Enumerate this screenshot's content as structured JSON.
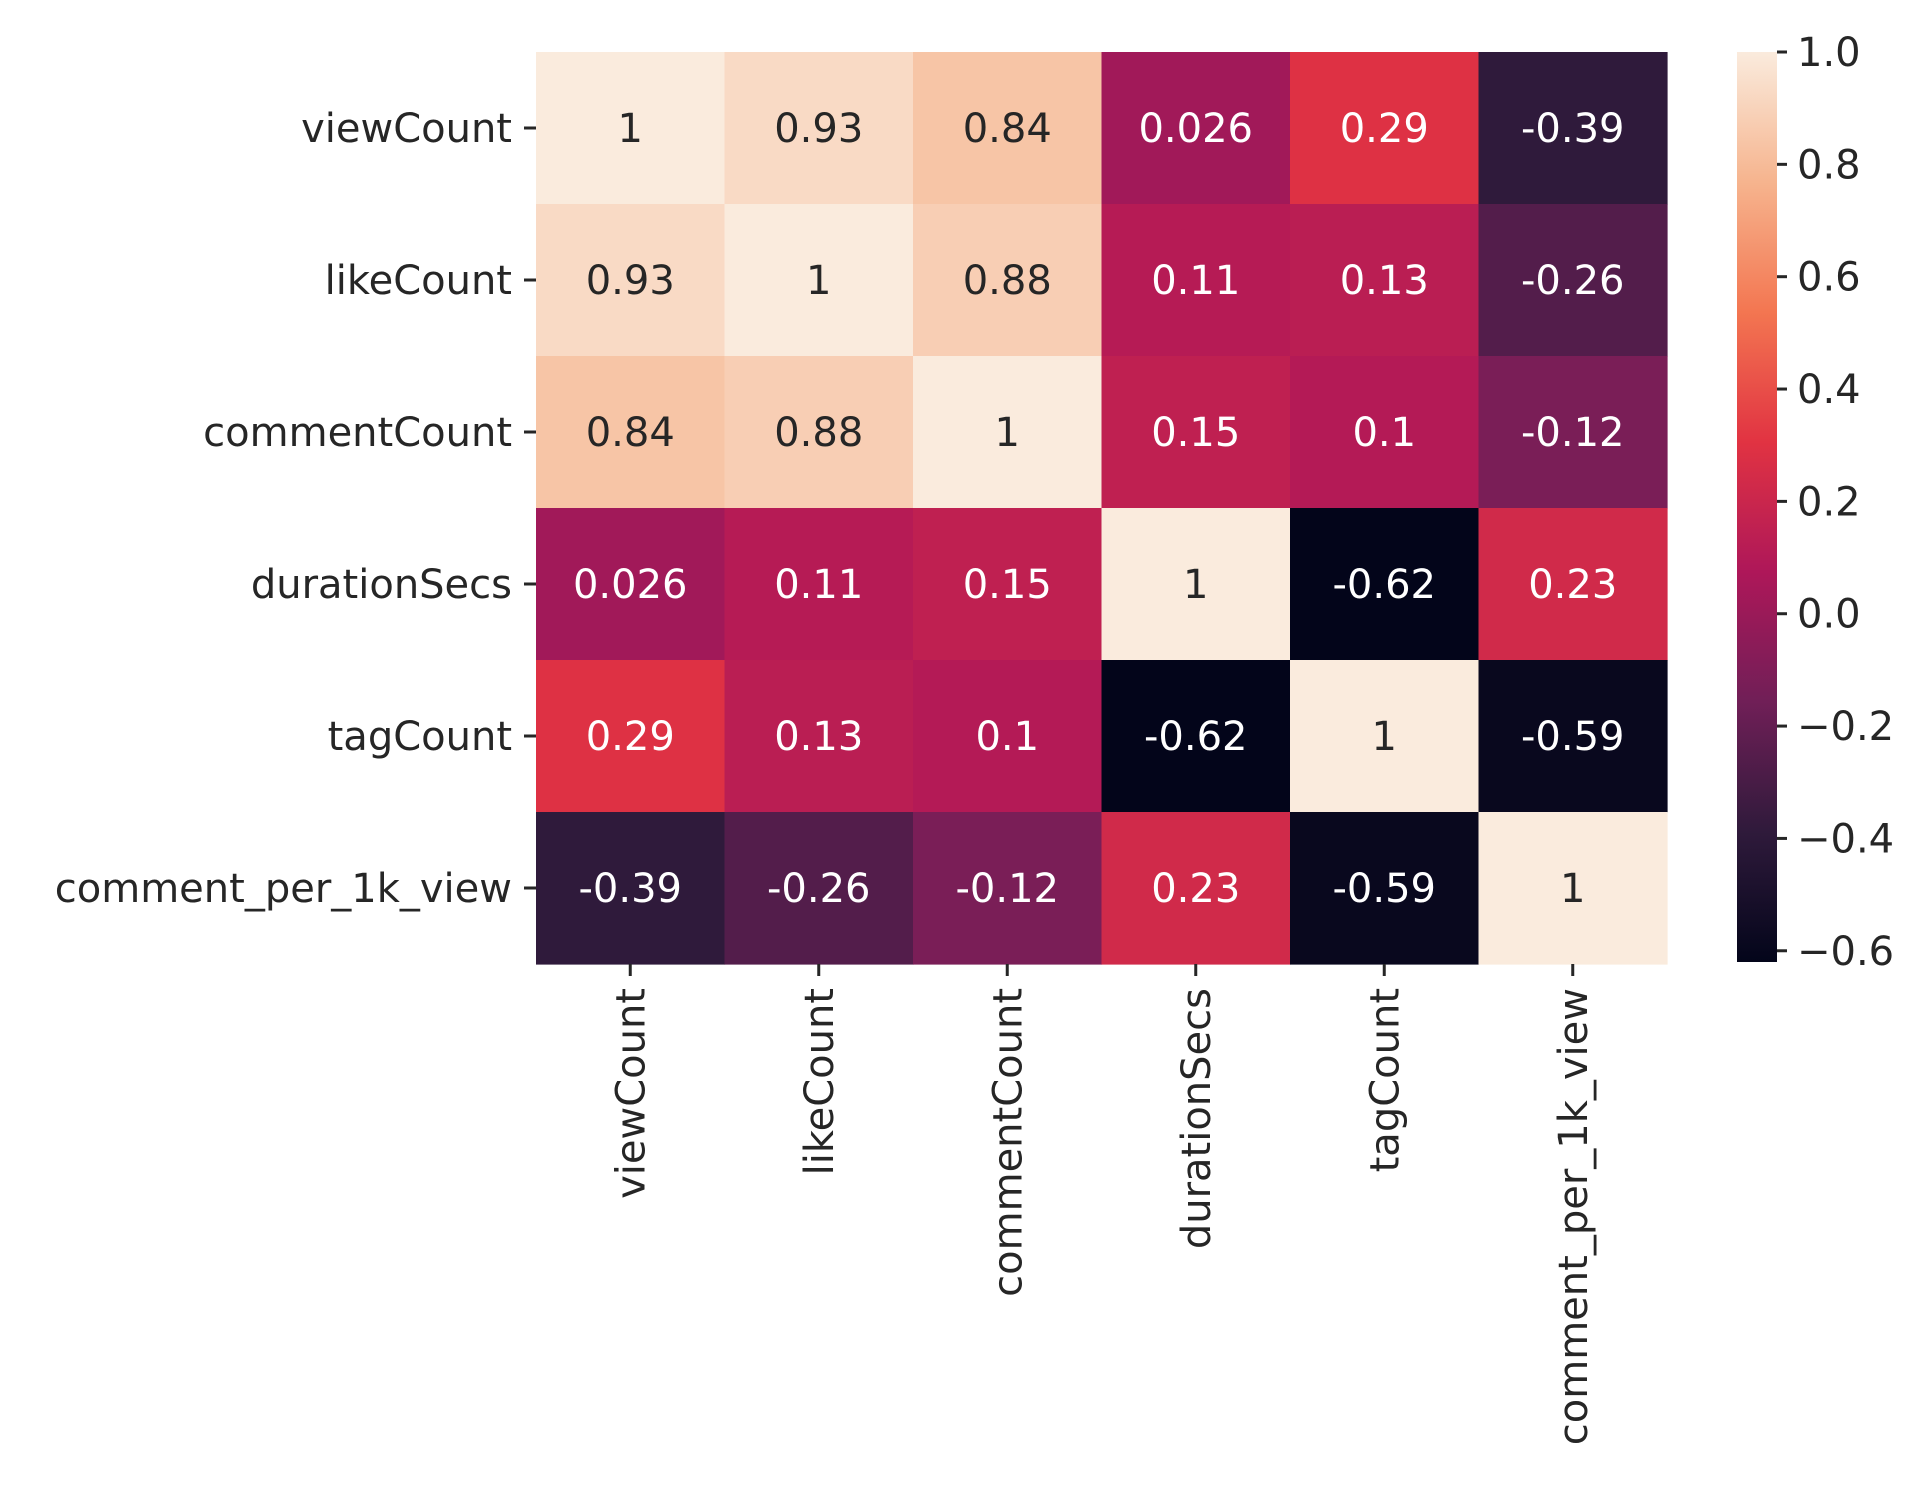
{
  "chart_data": {
    "type": "heatmap",
    "row_labels": [
      "viewCount",
      "likeCount",
      "commentCount",
      "durationSecs",
      "tagCount",
      "comment_per_1k_view"
    ],
    "col_labels": [
      "viewCount",
      "likeCount",
      "commentCount",
      "durationSecs",
      "tagCount",
      "comment_per_1k_view"
    ],
    "values": [
      [
        1,
        0.93,
        0.84,
        0.026,
        0.29,
        -0.39
      ],
      [
        0.93,
        1,
        0.88,
        0.11,
        0.13,
        -0.26
      ],
      [
        0.84,
        0.88,
        1,
        0.15,
        0.1,
        -0.12
      ],
      [
        0.026,
        0.11,
        0.15,
        1,
        -0.62,
        0.23
      ],
      [
        0.29,
        0.13,
        0.1,
        -0.62,
        1,
        -0.59
      ],
      [
        -0.39,
        -0.26,
        -0.12,
        0.23,
        -0.59,
        1
      ]
    ],
    "cell_labels": [
      [
        "1",
        "0.93",
        "0.84",
        "0.026",
        "0.29",
        "-0.39"
      ],
      [
        "0.93",
        "1",
        "0.88",
        "0.11",
        "0.13",
        "-0.26"
      ],
      [
        "0.84",
        "0.88",
        "1",
        "0.15",
        "0.1",
        "-0.12"
      ],
      [
        "0.026",
        "0.11",
        "0.15",
        "1",
        "-0.62",
        "0.23"
      ],
      [
        "0.29",
        "0.13",
        "0.1",
        "-0.62",
        "1",
        "-0.59"
      ],
      [
        "-0.39",
        "-0.26",
        "-0.12",
        "0.23",
        "-0.59",
        "1"
      ]
    ],
    "colorbar": {
      "vmin": -0.62,
      "vmax": 1.0,
      "ticks": [
        1.0,
        0.8,
        0.6,
        0.4,
        0.2,
        0.0,
        -0.2,
        -0.4,
        -0.6
      ],
      "tick_labels": [
        "1.0",
        "0.8",
        "0.6",
        "0.4",
        "0.2",
        "0.0",
        "−0.2",
        "−0.4",
        "−0.6"
      ],
      "colormap": "rocket",
      "colormap_stops": [
        "#03051a",
        "#2f1a3b",
        "#701f57",
        "#ae1759",
        "#e13342",
        "#f37651",
        "#f6b48e",
        "#faebdd"
      ]
    },
    "legend_placement": "right",
    "grid": false
  }
}
